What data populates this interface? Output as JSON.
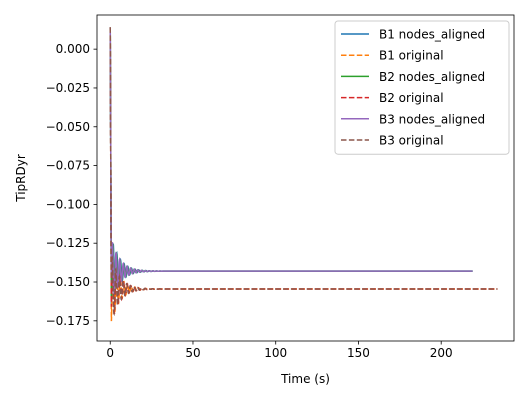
{
  "chart_data": {
    "type": "line",
    "title": "",
    "xlabel": "Time (s)",
    "ylabel": "TipRDyr",
    "xlim": [
      -8,
      244
    ],
    "ylim": [
      -0.188,
      0.022
    ],
    "xticks": [
      0,
      50,
      100,
      150,
      200
    ],
    "yticks": [
      0.0,
      -0.025,
      -0.05,
      -0.075,
      -0.1,
      -0.125,
      -0.15,
      -0.175
    ],
    "ytick_labels": [
      "0.000",
      "−0.025",
      "−0.050",
      "−0.075",
      "−0.100",
      "−0.125",
      "−0.150",
      "−0.175"
    ],
    "xtick_labels": [
      "0",
      "50",
      "100",
      "150",
      "200"
    ],
    "grid": false,
    "legend_position": "top-right",
    "series": [
      {
        "name": "B1 nodes_aligned",
        "color": "#1f77b4",
        "style": "solid",
        "t_end": 220,
        "steady": -0.143,
        "amp": 0.022,
        "decay": 5.0
      },
      {
        "name": "B1 original",
        "color": "#ff7f0e",
        "style": "dashed",
        "t_end": 235,
        "steady": -0.1545,
        "amp": 0.022,
        "decay": 5.0
      },
      {
        "name": "B2 nodes_aligned",
        "color": "#2ca02c",
        "style": "solid",
        "t_end": 220,
        "steady": -0.143,
        "amp": 0.021,
        "decay": 5.0
      },
      {
        "name": "B2 original",
        "color": "#d62728",
        "style": "dashed",
        "t_end": 235,
        "steady": -0.1545,
        "amp": 0.023,
        "decay": 5.0
      },
      {
        "name": "B3 nodes_aligned",
        "color": "#9467bd",
        "style": "solid",
        "t_end": 220,
        "steady": -0.143,
        "amp": 0.021,
        "decay": 5.0
      },
      {
        "name": "B3 original",
        "color": "#8c564b",
        "style": "dashed",
        "t_end": 235,
        "steady": -0.1545,
        "amp": 0.022,
        "decay": 5.0
      }
    ],
    "initial_value": 0.014
  }
}
